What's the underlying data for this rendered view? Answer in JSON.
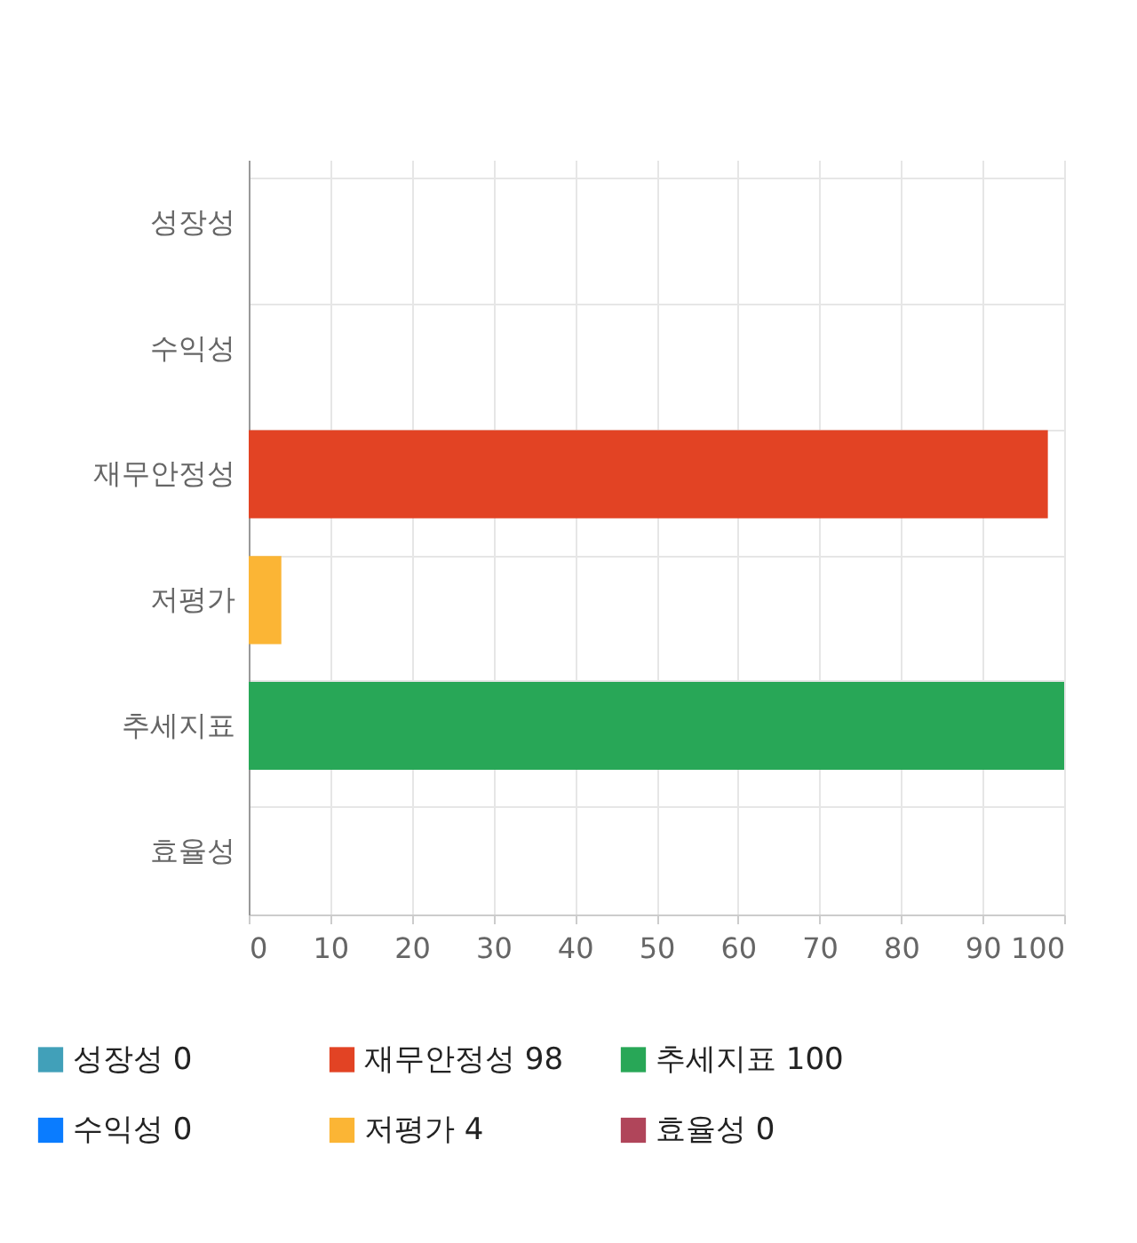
{
  "chart_data": {
    "type": "bar",
    "orientation": "horizontal",
    "categories": [
      "성장성",
      "수익성",
      "재무안정성",
      "저평가",
      "추세지표",
      "효율성"
    ],
    "series": [
      {
        "name": "성장성 0",
        "color": "#41a0b9",
        "values": [
          0,
          null,
          null,
          null,
          null,
          null
        ]
      },
      {
        "name": "수익성 0",
        "color": "#0a7cff",
        "values": [
          null,
          0,
          null,
          null,
          null,
          null
        ]
      },
      {
        "name": "재무안정성 98",
        "color": "#e24324",
        "values": [
          null,
          null,
          98,
          null,
          null,
          null
        ]
      },
      {
        "name": "저평가 4",
        "color": "#fbb535",
        "values": [
          null,
          null,
          null,
          4,
          null,
          null
        ]
      },
      {
        "name": "추세지표 100",
        "color": "#28a757",
        "values": [
          null,
          null,
          null,
          null,
          100,
          null
        ]
      },
      {
        "name": "효율성 0",
        "color": "#b0455a",
        "values": [
          null,
          null,
          null,
          null,
          null,
          0
        ]
      }
    ],
    "xlim": [
      0,
      100
    ],
    "xticks": [
      0,
      10,
      20,
      30,
      40,
      50,
      60,
      70,
      80,
      90,
      100
    ],
    "grid": true,
    "legend": "bottom"
  }
}
